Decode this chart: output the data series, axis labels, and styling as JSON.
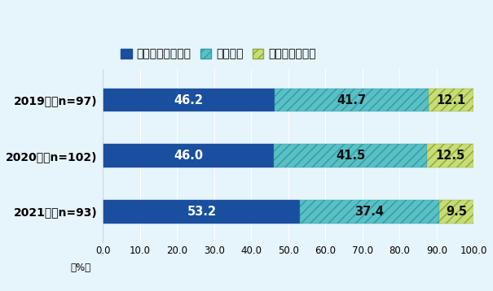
{
  "categories": [
    "2019年（n=97)",
    "2020年（n=102)",
    "2021年（n=93)"
  ],
  "series": [
    {
      "label": "現地進出日系企業",
      "values": [
        46.2,
        46.0,
        53.2
      ],
      "color": "#1a4f9f",
      "hatch": null,
      "edgecolor": "#1a4f9f"
    },
    {
      "label": "地場企業",
      "values": [
        41.7,
        41.5,
        37.4
      ],
      "color": "#5bbfc4",
      "hatch": "///",
      "edgecolor": "#2a9da8"
    },
    {
      "label": "その他外資企業",
      "values": [
        12.1,
        12.5,
        9.5
      ],
      "color": "#c8dc78",
      "hatch": "///",
      "edgecolor": "#8aaa30"
    }
  ],
  "xlim": [
    0,
    100
  ],
  "xticks": [
    0.0,
    10.0,
    20.0,
    30.0,
    40.0,
    50.0,
    60.0,
    70.0,
    80.0,
    90.0,
    100.0
  ],
  "xlabel": "（%）",
  "background_color": "#e6f4fb",
  "bar_height": 0.42,
  "value_fontsize": 10.5,
  "label_fontsize": 10,
  "tick_fontsize": 8.5,
  "legend_fontsize": 10
}
